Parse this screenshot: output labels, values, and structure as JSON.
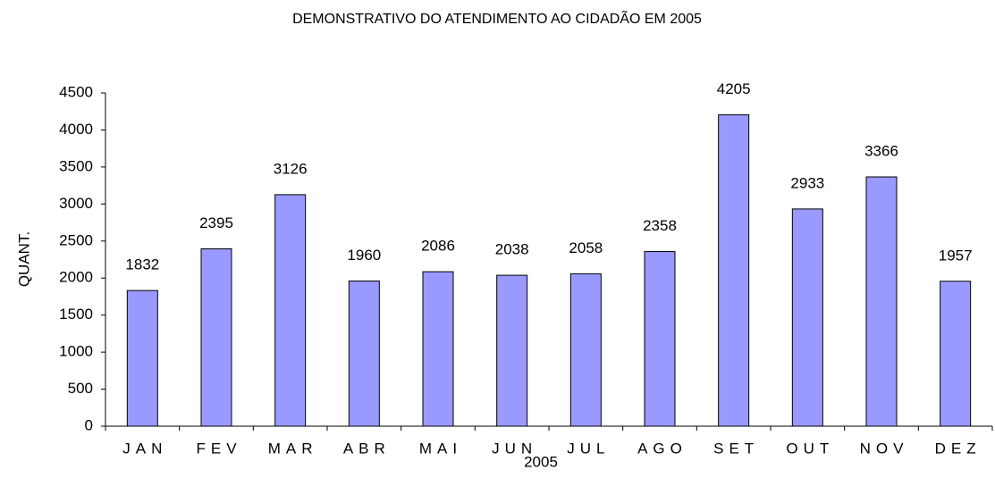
{
  "chart_data": {
    "type": "bar",
    "title": "DEMONSTRATIVO DO ATENDIMENTO AO CIDADÃO EM 2005",
    "x_label": "2005",
    "y_label": "QUANT.",
    "categories": [
      "JAN",
      "FEV",
      "MAR",
      "ABR",
      "MAI",
      "JUN",
      "JUL",
      "AGO",
      "SET",
      "OUT",
      "NOV",
      "DEZ"
    ],
    "values": [
      1832,
      2395,
      3126,
      1960,
      2086,
      2038,
      2058,
      2358,
      4205,
      2933,
      3366,
      1957
    ],
    "color": "#9999ff",
    "ylim": [
      0,
      4500
    ],
    "yticks": [
      0,
      500,
      1000,
      1500,
      2000,
      2500,
      3000,
      3500,
      4000,
      4500
    ],
    "grid": false
  }
}
